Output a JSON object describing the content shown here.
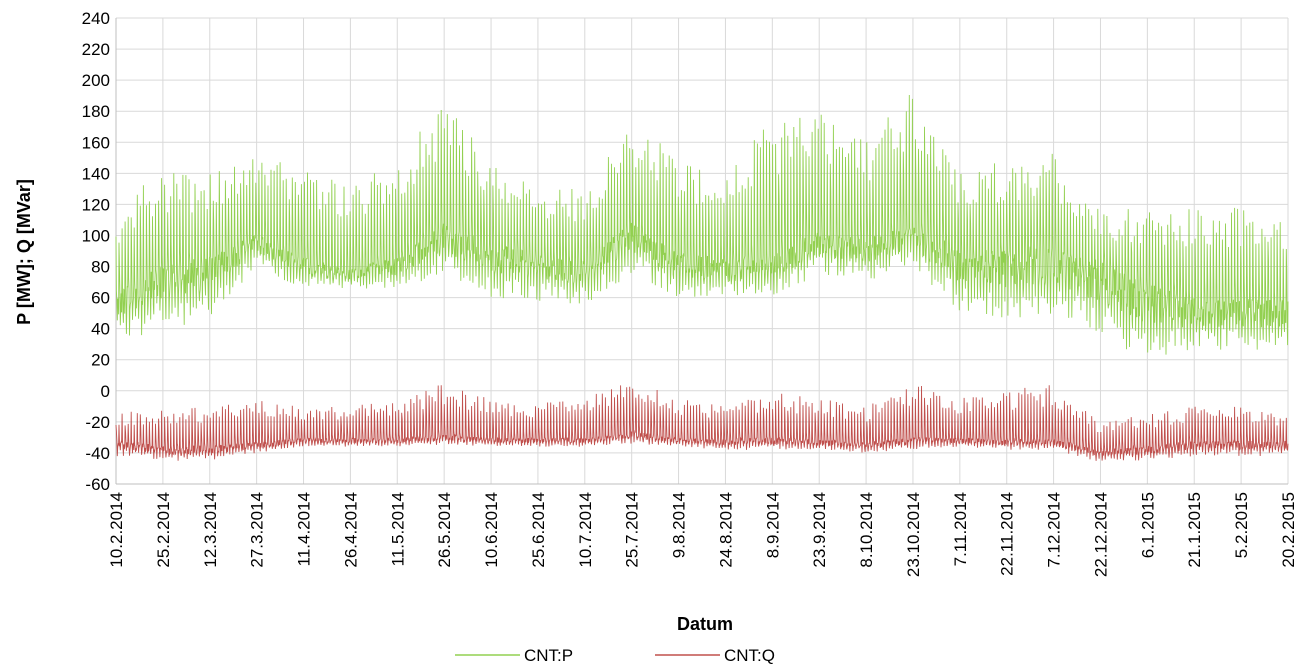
{
  "chart_data": {
    "type": "line",
    "title": "",
    "xlabel": "Datum",
    "ylabel": "P [MW]; Q [MVar]",
    "ylim": [
      -60,
      240
    ],
    "yticks": [
      240,
      220,
      200,
      180,
      160,
      140,
      120,
      100,
      80,
      60,
      40,
      20,
      0,
      -20,
      -40,
      -60
    ],
    "grid": true,
    "legend_placement": "bottom",
    "x_start": "10.2.2014",
    "x_end": "20.2.2015",
    "x_tick_labels": [
      "10.2.2014",
      "25.2.2014",
      "12.3.2014",
      "27.3.2014",
      "11.4.2014",
      "26.4.2014",
      "11.5.2014",
      "26.5.2014",
      "10.6.2014",
      "25.6.2014",
      "10.7.2014",
      "25.7.2014",
      "9.8.2014",
      "24.8.2014",
      "8.9.2014",
      "23.9.2014",
      "8.10.2014",
      "23.10.2014",
      "7.11.2014",
      "22.11.2014",
      "7.12.2014",
      "22.12.2014",
      "6.1.2015",
      "21.1.2015",
      "5.2.2015",
      "20.2.2015"
    ],
    "series": [
      {
        "name": "CNT:P",
        "color": "#92D050",
        "x": [
          "10.2.2014",
          "25.2.2014",
          "12.3.2014",
          "27.3.2014",
          "11.4.2014",
          "26.4.2014",
          "11.5.2014",
          "26.5.2014",
          "10.6.2014",
          "25.6.2014",
          "10.7.2014",
          "25.7.2014",
          "9.8.2014",
          "24.8.2014",
          "8.9.2014",
          "23.9.2014",
          "8.10.2014",
          "23.10.2014",
          "7.11.2014",
          "22.11.2014",
          "7.12.2014",
          "22.12.2014",
          "6.1.2015",
          "21.1.2015",
          "5.2.2015",
          "20.2.2015"
        ],
        "base": [
          55,
          70,
          75,
          95,
          80,
          75,
          80,
          100,
          85,
          80,
          75,
          100,
          80,
          78,
          80,
          95,
          90,
          100,
          80,
          80,
          80,
          70,
          55,
          50,
          50,
          50
        ],
        "low": [
          30,
          40,
          45,
          80,
          65,
          65,
          65,
          75,
          60,
          58,
          55,
          75,
          60,
          58,
          60,
          75,
          70,
          80,
          50,
          45,
          50,
          35,
          20,
          25,
          25,
          28
        ],
        "peak": [
          115,
          145,
          140,
          150,
          145,
          130,
          150,
          185,
          150,
          130,
          130,
          175,
          150,
          140,
          175,
          185,
          160,
          195,
          140,
          150,
          155,
          115,
          120,
          120,
          120,
          115
        ]
      },
      {
        "name": "CNT:Q",
        "color": "#C0504D",
        "x": [
          "10.2.2014",
          "25.2.2014",
          "12.3.2014",
          "27.3.2014",
          "11.4.2014",
          "26.4.2014",
          "11.5.2014",
          "26.5.2014",
          "10.6.2014",
          "25.6.2014",
          "10.7.2014",
          "25.7.2014",
          "9.8.2014",
          "24.8.2014",
          "8.9.2014",
          "23.9.2014",
          "8.10.2014",
          "23.10.2014",
          "7.11.2014",
          "22.11.2014",
          "7.12.2014",
          "22.12.2014",
          "6.1.2015",
          "21.1.2015",
          "5.2.2015",
          "20.2.2015"
        ],
        "base": [
          -35,
          -38,
          -38,
          -35,
          -32,
          -32,
          -32,
          -30,
          -32,
          -32,
          -32,
          -28,
          -32,
          -33,
          -32,
          -33,
          -35,
          -32,
          -32,
          -33,
          -33,
          -40,
          -38,
          -35,
          -35,
          -35
        ],
        "low": [
          -42,
          -45,
          -45,
          -40,
          -36,
          -36,
          -36,
          -35,
          -36,
          -36,
          -36,
          -34,
          -36,
          -38,
          -38,
          -38,
          -40,
          -38,
          -36,
          -38,
          -38,
          -46,
          -45,
          -42,
          -42,
          -42
        ],
        "peak": [
          -15,
          -10,
          -10,
          -5,
          -10,
          -10,
          -5,
          5,
          -5,
          -8,
          -5,
          8,
          -5,
          -10,
          0,
          -5,
          -10,
          5,
          -5,
          0,
          5,
          -20,
          -15,
          -10,
          -10,
          -15
        ]
      }
    ]
  }
}
